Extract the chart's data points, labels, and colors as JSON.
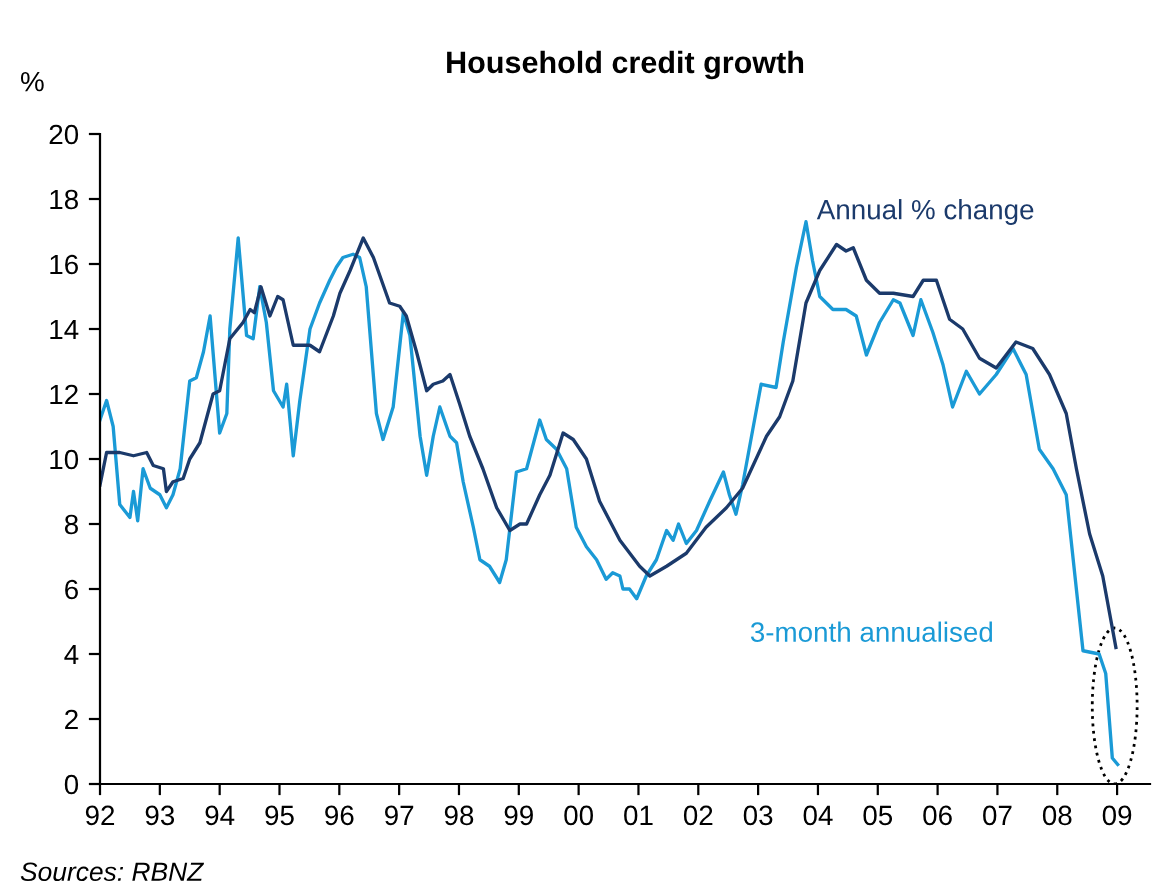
{
  "chart_data": {
    "type": "line",
    "title": "Household credit growth",
    "ylabel": "%",
    "xlim": [
      1992,
      2009.55
    ],
    "ylim": [
      0,
      20
    ],
    "xticks": [
      {
        "value": 1992,
        "label": "92"
      },
      {
        "value": 1993,
        "label": "93"
      },
      {
        "value": 1994,
        "label": "94"
      },
      {
        "value": 1995,
        "label": "95"
      },
      {
        "value": 1996,
        "label": "96"
      },
      {
        "value": 1997,
        "label": "97"
      },
      {
        "value": 1998,
        "label": "98"
      },
      {
        "value": 1999,
        "label": "99"
      },
      {
        "value": 2000,
        "label": "00"
      },
      {
        "value": 2001,
        "label": "01"
      },
      {
        "value": 2002,
        "label": "02"
      },
      {
        "value": 2003,
        "label": "03"
      },
      {
        "value": 2004,
        "label": "04"
      },
      {
        "value": 2005,
        "label": "05"
      },
      {
        "value": 2006,
        "label": "06"
      },
      {
        "value": 2007,
        "label": "07"
      },
      {
        "value": 2008,
        "label": "08"
      },
      {
        "value": 2009,
        "label": "09"
      }
    ],
    "yticks": [
      0,
      2,
      4,
      6,
      8,
      10,
      12,
      14,
      16,
      18,
      20
    ],
    "grid": false,
    "legend": false,
    "marker": "none",
    "line_style": "solid",
    "series": [
      {
        "name": "3-month annualised",
        "color": "#1a9ad6",
        "x": [
          1992.0,
          1992.11,
          1992.22,
          1992.33,
          1992.5,
          1992.56,
          1992.63,
          1992.72,
          1992.84,
          1993.0,
          1993.11,
          1993.22,
          1993.34,
          1993.5,
          1993.61,
          1993.73,
          1993.84,
          1994.0,
          1994.12,
          1994.17,
          1994.31,
          1994.45,
          1994.56,
          1994.67,
          1994.78,
          1994.9,
          1995.06,
          1995.12,
          1995.23,
          1995.34,
          1995.51,
          1995.67,
          1995.84,
          1995.95,
          1996.06,
          1996.23,
          1996.34,
          1996.45,
          1996.62,
          1996.73,
          1996.9,
          1997.07,
          1997.18,
          1997.35,
          1997.46,
          1997.57,
          1997.68,
          1997.85,
          1997.96,
          1998.07,
          1998.24,
          1998.35,
          1998.51,
          1998.68,
          1998.79,
          1998.96,
          1999.13,
          1999.35,
          1999.46,
          1999.63,
          1999.8,
          1999.96,
          2000.13,
          2000.3,
          2000.46,
          2000.57,
          2000.69,
          2000.74,
          2000.85,
          2000.97,
          2001.13,
          2001.3,
          2001.47,
          2001.58,
          2001.67,
          2001.8,
          2001.97,
          2002.19,
          2002.42,
          2002.52,
          2002.63,
          2002.74,
          2002.91,
          2003.05,
          2003.3,
          2003.42,
          2003.64,
          2003.8,
          2003.91,
          2004.03,
          2004.25,
          2004.47,
          2004.64,
          2004.81,
          2005.03,
          2005.26,
          2005.37,
          2005.59,
          2005.72,
          2005.92,
          2006.09,
          2006.25,
          2006.48,
          2006.7,
          2006.98,
          2007.26,
          2007.48,
          2007.7,
          2007.93,
          2008.15,
          2008.43,
          2008.7,
          2008.81,
          2008.92,
          2009.01
        ],
        "values": [
          11.2,
          11.8,
          11.0,
          8.6,
          8.2,
          9.0,
          8.1,
          9.7,
          9.1,
          8.9,
          8.5,
          8.9,
          9.7,
          12.4,
          12.5,
          13.3,
          14.4,
          10.8,
          11.4,
          14.0,
          16.8,
          13.8,
          13.7,
          15.3,
          14.2,
          12.1,
          11.6,
          12.3,
          10.1,
          11.8,
          14.0,
          14.8,
          15.5,
          15.9,
          16.2,
          16.3,
          16.2,
          15.3,
          11.4,
          10.6,
          11.6,
          14.5,
          13.8,
          10.7,
          9.5,
          10.7,
          11.6,
          10.7,
          10.5,
          9.3,
          7.9,
          6.9,
          6.7,
          6.2,
          6.9,
          9.6,
          9.7,
          11.2,
          10.6,
          10.3,
          9.7,
          7.9,
          7.3,
          6.9,
          6.3,
          6.5,
          6.4,
          6.0,
          6.0,
          5.7,
          6.4,
          6.9,
          7.8,
          7.5,
          8.0,
          7.4,
          7.8,
          8.7,
          9.6,
          8.9,
          8.3,
          9.2,
          10.9,
          12.3,
          12.2,
          13.6,
          15.9,
          17.3,
          16.1,
          15.0,
          14.6,
          14.6,
          14.4,
          13.2,
          14.2,
          14.9,
          14.8,
          13.8,
          14.9,
          13.9,
          12.9,
          11.6,
          12.7,
          12.0,
          12.6,
          13.4,
          12.6,
          10.3,
          9.7,
          8.9,
          4.1,
          4.0,
          3.4,
          0.8,
          0.6
        ]
      },
      {
        "name": "Annual % change",
        "color": "#1b3a6b",
        "x": [
          1992.0,
          1992.11,
          1992.33,
          1992.56,
          1992.78,
          1992.89,
          1993.06,
          1993.11,
          1993.22,
          1993.39,
          1993.5,
          1993.67,
          1993.89,
          1994.0,
          1994.17,
          1994.39,
          1994.51,
          1994.58,
          1994.69,
          1994.84,
          1994.97,
          1995.06,
          1995.23,
          1995.51,
          1995.67,
          1995.9,
          1996.01,
          1996.18,
          1996.4,
          1996.57,
          1996.84,
          1997.01,
          1997.12,
          1997.29,
          1997.46,
          1997.57,
          1997.73,
          1997.85,
          1998.01,
          1998.18,
          1998.4,
          1998.63,
          1998.85,
          1999.02,
          1999.13,
          1999.35,
          1999.52,
          1999.74,
          1999.91,
          2000.13,
          2000.35,
          2000.69,
          2001.02,
          2001.19,
          2001.47,
          2001.8,
          2002.13,
          2002.47,
          2002.74,
          2003.14,
          2003.36,
          2003.58,
          2003.8,
          2004.03,
          2004.31,
          2004.47,
          2004.59,
          2004.81,
          2005.03,
          2005.26,
          2005.59,
          2005.76,
          2005.98,
          2006.2,
          2006.42,
          2006.7,
          2006.98,
          2007.31,
          2007.59,
          2007.87,
          2008.15,
          2008.32,
          2008.54,
          2008.76,
          2008.98
        ],
        "values": [
          9.2,
          10.2,
          10.2,
          10.1,
          10.2,
          9.8,
          9.7,
          9.0,
          9.3,
          9.4,
          10.0,
          10.5,
          12.0,
          12.1,
          13.7,
          14.2,
          14.6,
          14.5,
          15.3,
          14.4,
          15.0,
          14.9,
          13.5,
          13.5,
          13.3,
          14.4,
          15.1,
          15.8,
          16.8,
          16.2,
          14.8,
          14.7,
          14.4,
          13.3,
          12.1,
          12.3,
          12.4,
          12.6,
          11.7,
          10.7,
          9.7,
          8.5,
          7.8,
          8.0,
          8.0,
          8.9,
          9.5,
          10.8,
          10.6,
          10.0,
          8.7,
          7.5,
          6.7,
          6.4,
          6.7,
          7.1,
          7.9,
          8.5,
          9.1,
          10.7,
          11.3,
          12.4,
          14.8,
          15.8,
          16.6,
          16.4,
          16.5,
          15.5,
          15.1,
          15.1,
          15.0,
          15.5,
          15.5,
          14.3,
          14.0,
          13.1,
          12.8,
          13.6,
          13.4,
          12.6,
          11.4,
          9.7,
          7.7,
          6.4,
          4.2
        ]
      }
    ],
    "annotations": [
      "Sources: RBNZ"
    ]
  }
}
